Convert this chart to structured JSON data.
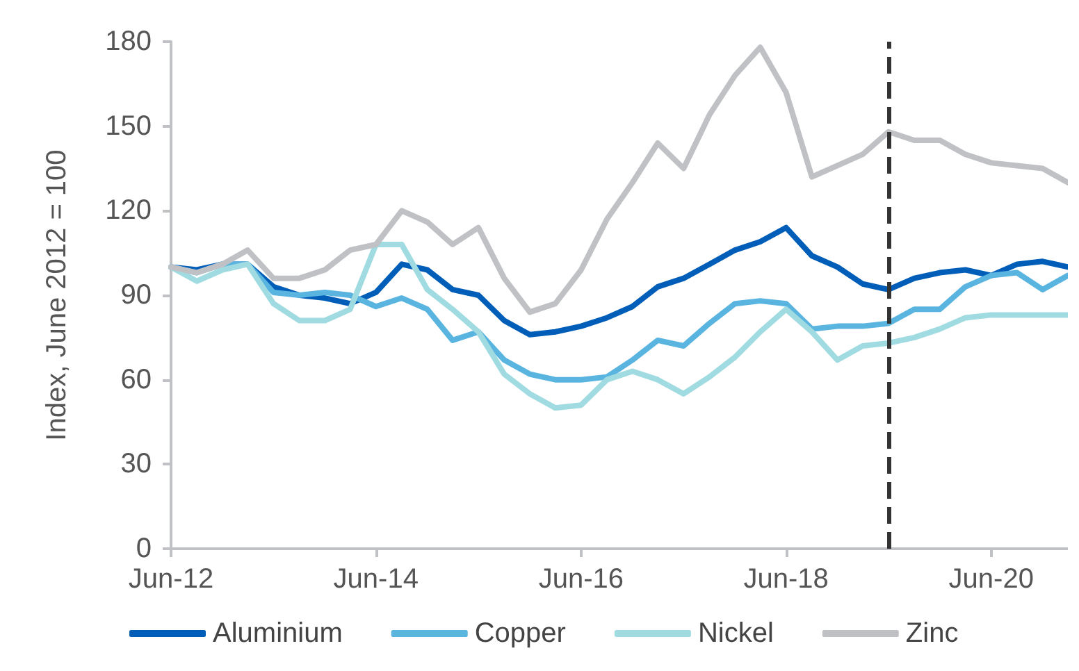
{
  "chart_data": {
    "type": "line",
    "ylabel": "Index, June 2012 = 100",
    "x": [
      "2012-06",
      "2012-09",
      "2012-12",
      "2013-03",
      "2013-06",
      "2013-09",
      "2013-12",
      "2014-03",
      "2014-06",
      "2014-09",
      "2014-12",
      "2015-03",
      "2015-06",
      "2015-09",
      "2015-12",
      "2016-03",
      "2016-06",
      "2016-09",
      "2016-12",
      "2017-03",
      "2017-06",
      "2017-09",
      "2017-12",
      "2018-03",
      "2018-06",
      "2018-09",
      "2018-12",
      "2019-03",
      "2019-06",
      "2019-09",
      "2019-12",
      "2020-03",
      "2020-06",
      "2020-09",
      "2020-12",
      "2021-03"
    ],
    "series": [
      {
        "name": "Aluminium",
        "color": "#005eb8",
        "values": [
          100,
          99,
          101,
          101,
          93,
          90,
          89,
          87,
          91,
          101,
          99,
          92,
          90,
          81,
          76,
          77,
          79,
          82,
          86,
          93,
          96,
          101,
          106,
          109,
          114,
          104,
          100,
          94,
          92,
          96,
          98,
          99,
          97,
          101,
          102,
          100
        ]
      },
      {
        "name": "Copper",
        "color": "#5ab4e0",
        "values": [
          100,
          98,
          101,
          101,
          91,
          90,
          91,
          90,
          86,
          89,
          85,
          74,
          77,
          67,
          62,
          60,
          60,
          61,
          67,
          74,
          72,
          80,
          87,
          88,
          87,
          78,
          79,
          79,
          80,
          85,
          85,
          93,
          97,
          98,
          92,
          97
        ]
      },
      {
        "name": "Nickel",
        "color": "#a0dbe2",
        "values": [
          100,
          95,
          99,
          101,
          87,
          81,
          81,
          85,
          108,
          108,
          92,
          85,
          77,
          62,
          55,
          50,
          51,
          60,
          63,
          60,
          55,
          61,
          68,
          77,
          85,
          77,
          67,
          72,
          73,
          75,
          78,
          82,
          83,
          83,
          83,
          83
        ]
      },
      {
        "name": "Zinc",
        "color": "#bfc1c4",
        "values": [
          100,
          98,
          101,
          106,
          96,
          96,
          99,
          106,
          108,
          120,
          116,
          108,
          114,
          96,
          84,
          87,
          99,
          117,
          130,
          144,
          135,
          154,
          168,
          178,
          162,
          132,
          136,
          140,
          148,
          145,
          145,
          140,
          137,
          136,
          135,
          130
        ]
      }
    ],
    "xlim": [
      "2012-06",
      "2021-03"
    ],
    "xticks": [
      {
        "value": "2012-06",
        "label": "Jun-12"
      },
      {
        "value": "2014-06",
        "label": "Jun-14"
      },
      {
        "value": "2016-06",
        "label": "Jun-16"
      },
      {
        "value": "2018-06",
        "label": "Jun-18"
      },
      {
        "value": "2020-06",
        "label": "Jun-20"
      }
    ],
    "ylim": [
      0,
      180
    ],
    "yticks": [
      0,
      30,
      60,
      90,
      120,
      150,
      180
    ],
    "ref_lines": [
      {
        "axis": "x",
        "value": "2019-06",
        "color": "#333333",
        "line_style": "dashed"
      }
    ],
    "grid": false,
    "legend": "bottom",
    "marker": "none",
    "line_style": "solid"
  }
}
